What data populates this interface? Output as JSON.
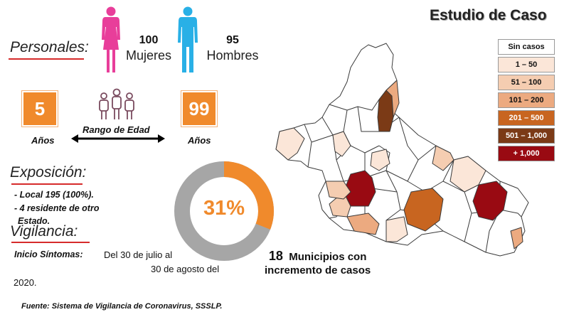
{
  "title": "Estudio de Caso",
  "personales": {
    "heading": "Personales:",
    "women_count": "100",
    "women_label": "Mujeres",
    "men_count": "95",
    "men_label": "Hombres",
    "women_color": "#e83e9a",
    "men_color": "#29b0e6"
  },
  "edad": {
    "min": "5",
    "max": "99",
    "min_unit": "Años",
    "max_unit": "Años",
    "range_label": "Rango de Edad",
    "accent": "#f08a2c"
  },
  "exposicion": {
    "heading": "Exposición:",
    "items": [
      "- Local 195 (100%).",
      "- 4 residente de otro",
      "Estado."
    ]
  },
  "percentage": {
    "label": "31%",
    "value": 0.31,
    "color": "#f08a2c",
    "track_color": "#a6a6a6"
  },
  "vigilancia": {
    "heading": "Vigilancia:",
    "inicio_label": "Inicio Síntomas:",
    "range_line1": "Del 30 de julio al",
    "range_line2": "30 de agosto del",
    "range_line3": "2020."
  },
  "municipios": {
    "count": "18",
    "line1_rest": "Municipios con",
    "line2": "incremento de casos"
  },
  "legend": [
    {
      "label": "Sin casos",
      "color": "#ffffff",
      "text_color": "#111111"
    },
    {
      "label": "1 – 50",
      "color": "#fbe6d8",
      "text_color": "#111111"
    },
    {
      "label": "51 – 100",
      "color": "#f5cdb1",
      "text_color": "#111111"
    },
    {
      "label": "101 – 200",
      "color": "#ecaa80",
      "text_color": "#111111"
    },
    {
      "label": "201 – 500",
      "color": "#c86520",
      "text_color": "#ffffff"
    },
    {
      "label": "501 – 1,000",
      "color": "#7b3a16",
      "text_color": "#ffffff"
    },
    {
      "label": "+ 1,000",
      "color": "#990a12",
      "text_color": "#ffffff"
    }
  ],
  "source": "Fuente: Sistema de Vigilancia de Coronavirus, SSSLP."
}
